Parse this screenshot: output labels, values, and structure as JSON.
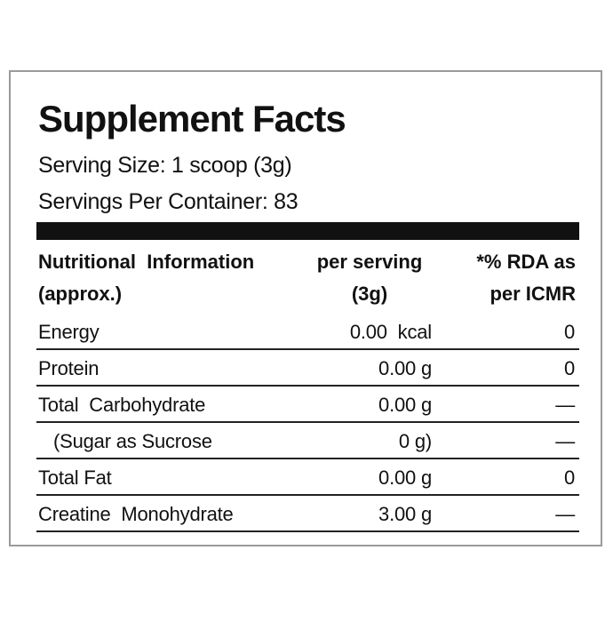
{
  "title": "Supplement Facts",
  "serving_size": "Serving Size: 1 scoop (3g)",
  "servings_per_container": "Servings Per Container: 83",
  "header": {
    "col1_line1": "Nutritional  Information",
    "col1_line2": "(approx.)",
    "col2_line1": "per serving",
    "col2_line2": "(3g)",
    "col3_line1": "*% RDA as",
    "col3_line2": "per ICMR"
  },
  "rows": [
    {
      "name": "Energy",
      "amount": "0.00  kcal",
      "rda": "0"
    },
    {
      "name": "Protein",
      "amount": "0.00 g",
      "rda": "0"
    },
    {
      "name": "Total  Carbohydrate",
      "amount": "0.00 g",
      "rda": "—"
    },
    {
      "name": "(Sugar as Sucrose",
      "amount": "0 g)",
      "rda": "—"
    },
    {
      "name": "Total Fat",
      "amount": "0.00 g",
      "rda": "0"
    },
    {
      "name": "Creatine  Monohydrate",
      "amount": "3.00 g",
      "rda": "—"
    }
  ]
}
